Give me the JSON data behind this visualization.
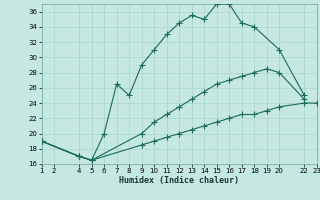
{
  "title": "",
  "xlabel": "Humidex (Indice chaleur)",
  "bg_color": "#c5e8e0",
  "grid_color": "#aad4cc",
  "line_color": "#1a6b5a",
  "xlim": [
    1,
    23
  ],
  "ylim": [
    16,
    37
  ],
  "xticks": [
    1,
    2,
    4,
    5,
    6,
    7,
    8,
    9,
    10,
    11,
    12,
    13,
    14,
    15,
    16,
    17,
    18,
    19,
    20,
    22,
    23
  ],
  "yticks": [
    16,
    18,
    20,
    22,
    24,
    26,
    28,
    30,
    32,
    34,
    36
  ],
  "curve1_x": [
    1,
    4,
    5,
    6,
    7,
    8,
    9,
    10,
    11,
    12,
    13,
    14,
    15,
    16,
    17,
    18,
    20,
    22
  ],
  "curve1_y": [
    19,
    17,
    16.5,
    20,
    26.5,
    25,
    29,
    31,
    33,
    34.5,
    35.5,
    35,
    37,
    37,
    34.5,
    34,
    31,
    25
  ],
  "curve2_x": [
    1,
    4,
    5,
    9,
    10,
    11,
    12,
    13,
    14,
    15,
    16,
    17,
    18,
    19,
    20,
    22
  ],
  "curve2_y": [
    19,
    17,
    16.5,
    20,
    21.5,
    22.5,
    23.5,
    24.5,
    25.5,
    26.5,
    27,
    27.5,
    28,
    28.5,
    28,
    24.5
  ],
  "curve3_x": [
    1,
    4,
    5,
    9,
    10,
    11,
    12,
    13,
    14,
    15,
    16,
    17,
    18,
    19,
    20,
    22,
    23
  ],
  "curve3_y": [
    19,
    17,
    16.5,
    18.5,
    19,
    19.5,
    20,
    20.5,
    21,
    21.5,
    22,
    22.5,
    22.5,
    23,
    23.5,
    24,
    24
  ]
}
